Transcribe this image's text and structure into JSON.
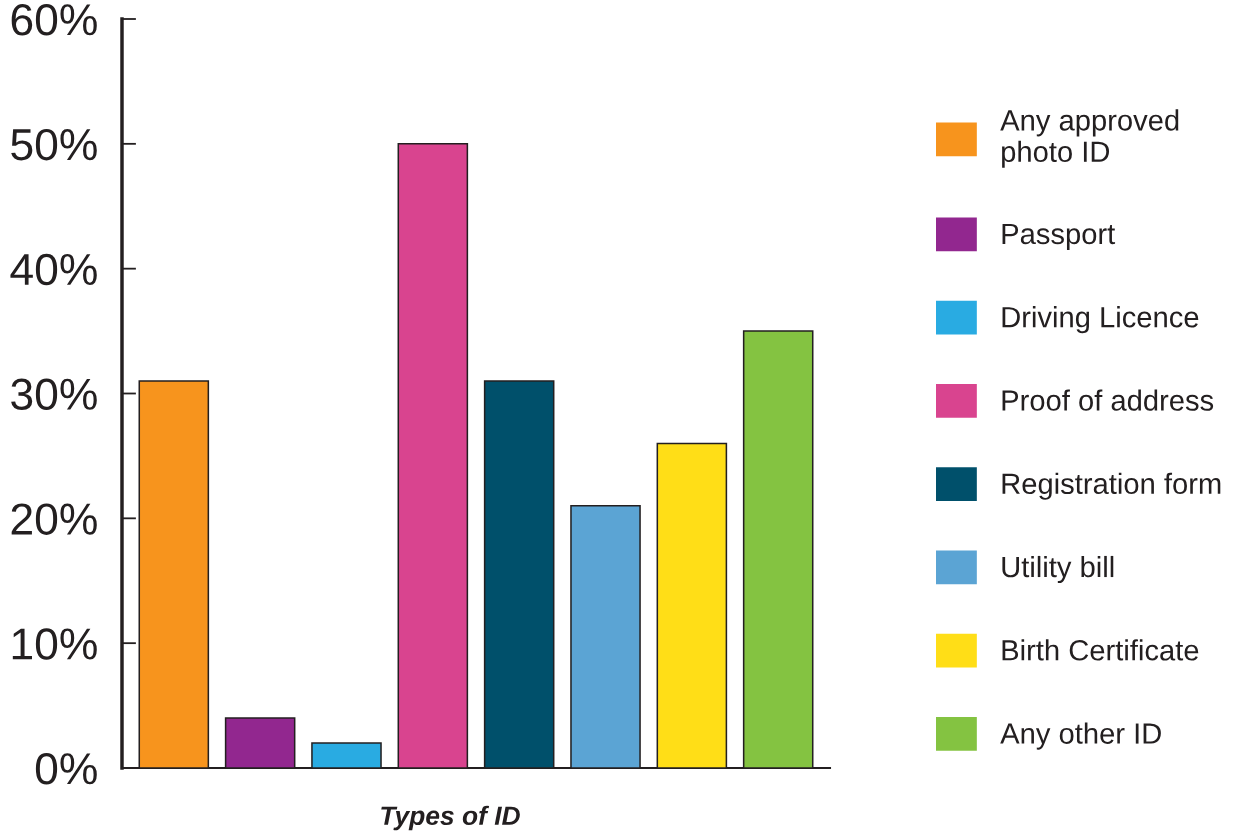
{
  "chart_data": {
    "type": "bar",
    "xlabel": "Types of ID",
    "categories": [
      null,
      null,
      null,
      null,
      null,
      null,
      null,
      null
    ],
    "series": [
      {
        "name": "Any approved photo ID",
        "color": "#f7941d",
        "values": [
          31,
          null,
          null,
          null,
          null,
          null,
          null,
          null
        ]
      },
      {
        "name": "Passport",
        "color": "#92278f",
        "values": [
          null,
          4,
          null,
          null,
          null,
          null,
          null,
          null
        ]
      },
      {
        "name": "Driving Licence",
        "color": "#29abe2",
        "values": [
          null,
          null,
          2,
          null,
          null,
          null,
          null,
          null
        ]
      },
      {
        "name": "Proof of address",
        "color": "#d9448f",
        "values": [
          null,
          null,
          null,
          50,
          null,
          null,
          null,
          null
        ]
      },
      {
        "name": "Registration form",
        "color": "#00506b",
        "values": [
          null,
          null,
          null,
          null,
          31,
          null,
          null,
          null
        ]
      },
      {
        "name": "Utility bill",
        "color": "#5ba4d4",
        "values": [
          null,
          null,
          null,
          null,
          null,
          21,
          null,
          null
        ]
      },
      {
        "name": "Birth Certificate",
        "color": "#ffde17",
        "values": [
          null,
          null,
          null,
          null,
          null,
          null,
          26,
          null
        ]
      },
      {
        "name": "Any other ID",
        "color": "#84c341",
        "values": [
          null,
          null,
          null,
          null,
          null,
          null,
          null,
          35
        ]
      }
    ],
    "ylim": [
      0,
      60
    ],
    "yticks": [
      {
        "value": 0,
        "label": "0%"
      },
      {
        "value": 10,
        "label": "10%"
      },
      {
        "value": 20,
        "label": "20%"
      },
      {
        "value": 30,
        "label": "30%"
      },
      {
        "value": 40,
        "label": "40%"
      },
      {
        "value": 50,
        "label": "50%"
      },
      {
        "value": 60,
        "label": "60%"
      }
    ],
    "tick_labels": "y",
    "legend": "right"
  }
}
